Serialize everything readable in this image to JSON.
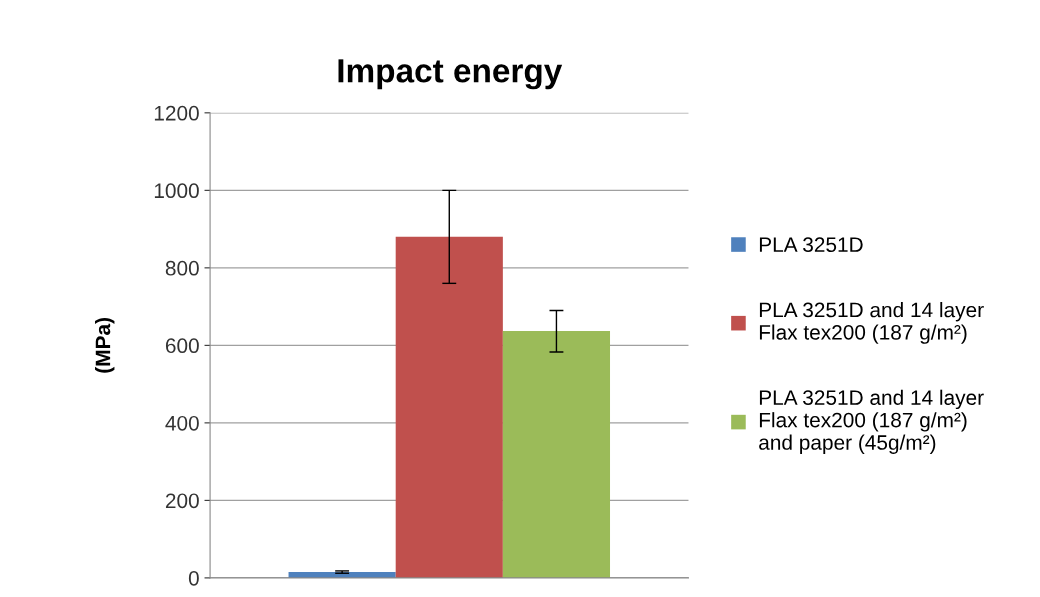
{
  "chart_data": {
    "type": "bar",
    "title": "Impact energy",
    "ylabel": "(MPa)",
    "categories": [
      null
    ],
    "series": [
      {
        "name": "PLA 3251D",
        "color": "#4f81bd",
        "values": [
          15
        ],
        "errors": [
          3
        ]
      },
      {
        "name": "PLA 3251D and 14 layer\nFlax tex200 (187 g/m²)",
        "color": "#c0504d",
        "values": [
          880
        ],
        "errors": [
          [
            760,
            1000
          ]
        ]
      },
      {
        "name": "PLA 3251D and 14 layer\nFlax tex200 (187 g/m²)\nand paper (45g/m²)",
        "color": "#9bbb59",
        "values": [
          637
        ],
        "errors": [
          [
            583,
            690
          ]
        ]
      }
    ],
    "ylim": [
      0,
      1200
    ],
    "yticks": [
      0,
      200,
      400,
      600,
      800,
      1000,
      1200
    ],
    "grid": "y",
    "legend": "right"
  }
}
